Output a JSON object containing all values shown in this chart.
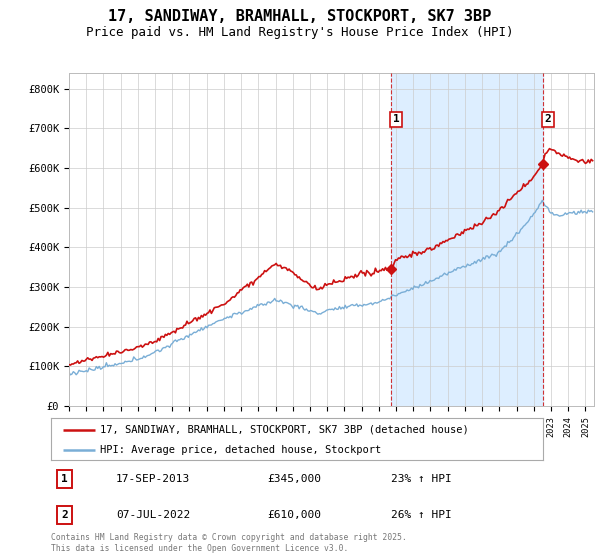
{
  "title1": "17, SANDIWAY, BRAMHALL, STOCKPORT, SK7 3BP",
  "title2": "Price paid vs. HM Land Registry's House Price Index (HPI)",
  "ylabel_ticks": [
    "£0",
    "£100K",
    "£200K",
    "£300K",
    "£400K",
    "£500K",
    "£600K",
    "£700K",
    "£800K"
  ],
  "ytick_values": [
    0,
    100000,
    200000,
    300000,
    400000,
    500000,
    600000,
    700000,
    800000
  ],
  "ylim": [
    0,
    840000
  ],
  "xlim_start": 1995.0,
  "xlim_end": 2025.5,
  "hpi_color": "#7aaed6",
  "price_color": "#cc1111",
  "marker1_date": 2013.71,
  "marker1_price": 345000,
  "marker2_date": 2022.52,
  "marker2_price": 610000,
  "vline1_x": 2013.71,
  "vline2_x": 2022.52,
  "shade_color": "#ddeeff",
  "legend_line1": "17, SANDIWAY, BRAMHALL, STOCKPORT, SK7 3BP (detached house)",
  "legend_line2": "HPI: Average price, detached house, Stockport",
  "annotation1_date": "17-SEP-2013",
  "annotation1_price": "£345,000",
  "annotation1_hpi": "23% ↑ HPI",
  "annotation2_date": "07-JUL-2022",
  "annotation2_price": "£610,000",
  "annotation2_hpi": "26% ↑ HPI",
  "footnote": "Contains HM Land Registry data © Crown copyright and database right 2025.\nThis data is licensed under the Open Government Licence v3.0.",
  "background_color": "#ffffff",
  "grid_color": "#cccccc",
  "title1_fontsize": 11,
  "title2_fontsize": 9
}
